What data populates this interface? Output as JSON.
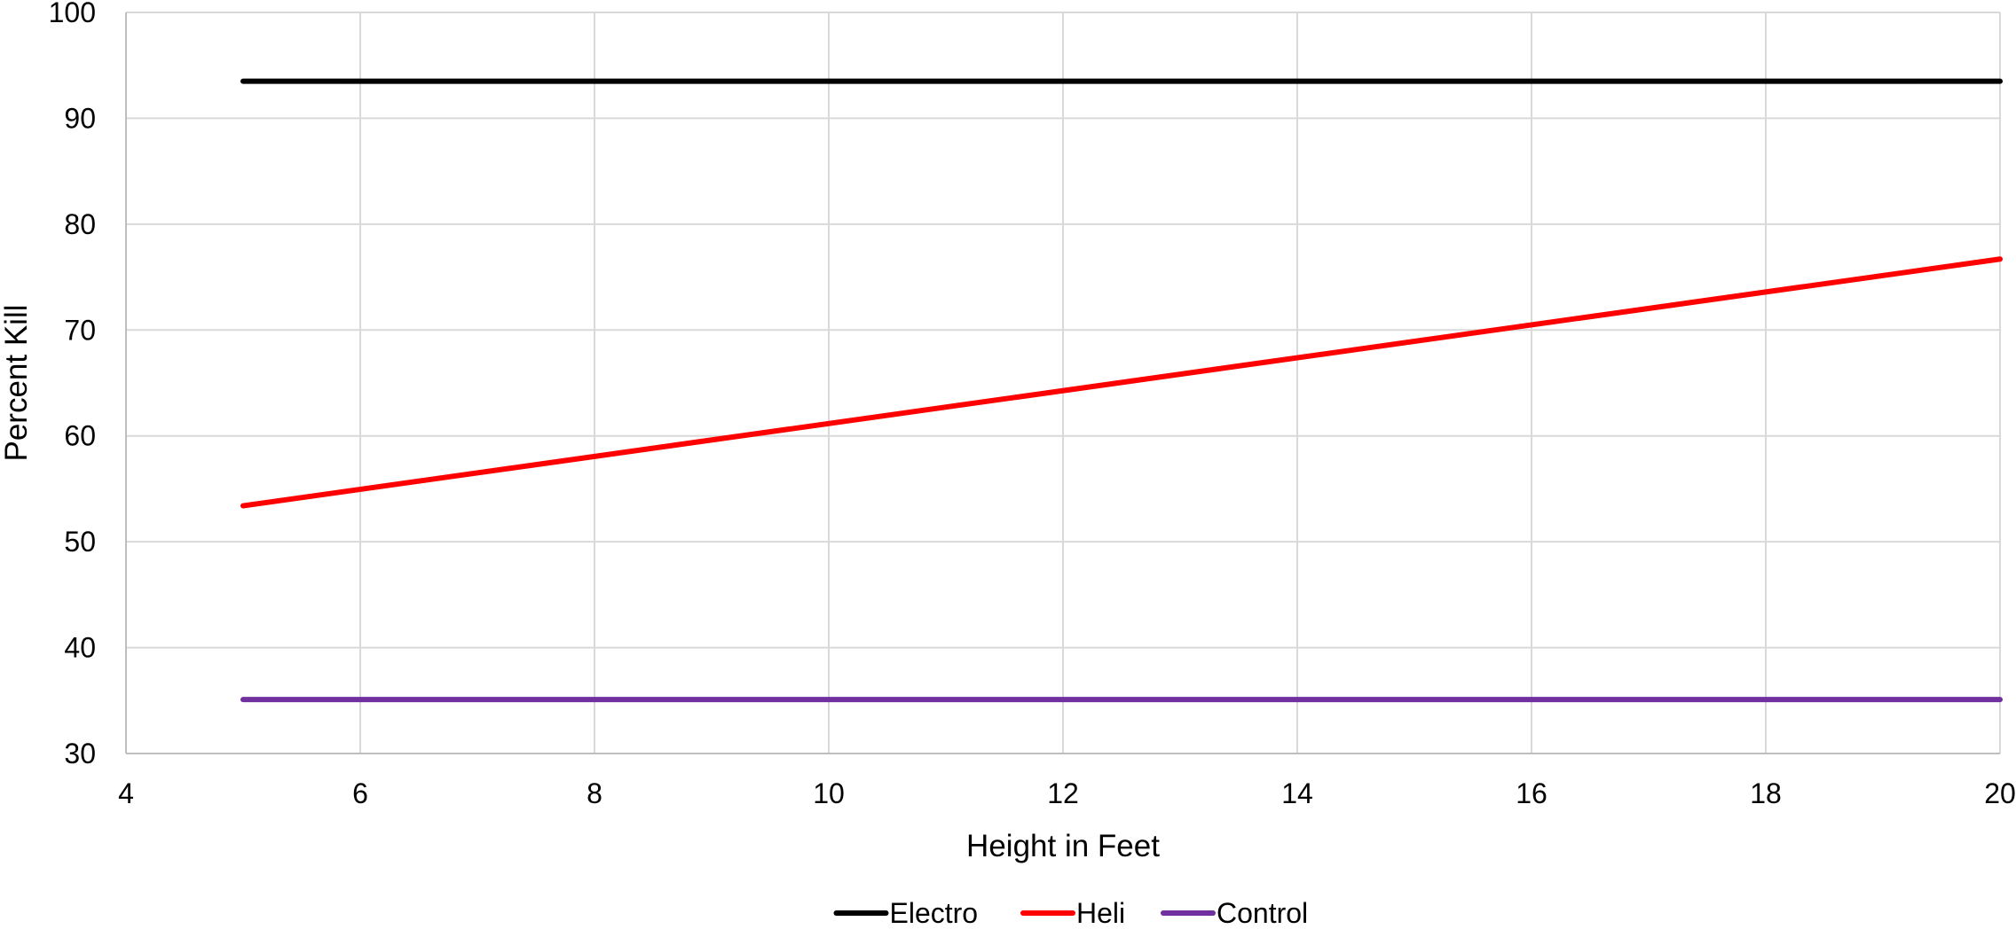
{
  "chart_data": {
    "type": "line",
    "title": "",
    "xlabel": "Height in Feet",
    "ylabel": "Percent Kill",
    "xlim": [
      4,
      20
    ],
    "ylim": [
      30,
      100
    ],
    "xticks": [
      4,
      6,
      8,
      10,
      12,
      14,
      16,
      18,
      20
    ],
    "yticks": [
      30,
      40,
      50,
      60,
      70,
      80,
      90,
      100
    ],
    "grid": true,
    "legend_position": "bottom",
    "series": [
      {
        "name": "Electro",
        "color": "#000000",
        "x": [
          5,
          20
        ],
        "y": [
          93.5,
          93.5
        ]
      },
      {
        "name": "Heli",
        "color": "#ff0000",
        "x": [
          5,
          20
        ],
        "y": [
          53.4,
          76.7
        ]
      },
      {
        "name": "Control",
        "color": "#7030a0",
        "x": [
          5,
          20
        ],
        "y": [
          35.1,
          35.1
        ]
      }
    ]
  }
}
